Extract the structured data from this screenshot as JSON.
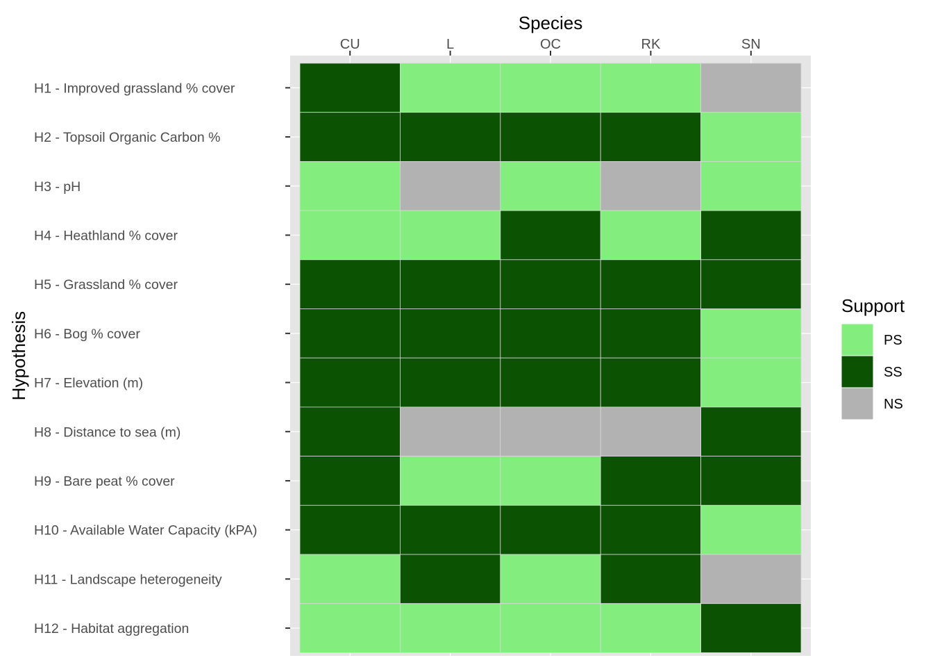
{
  "chart_data": {
    "type": "heatmap",
    "title": "",
    "xlabel": "Species",
    "ylabel": "Hypothesis",
    "x_position": "top",
    "categories": [
      "CU",
      "L",
      "OC",
      "RK",
      "SN"
    ],
    "rows": [
      "H1 - Improved grassland % cover",
      "H2 - Topsoil Organic Carbon %",
      "H3 - pH",
      "H4 - Heathland % cover",
      "H5 - Grassland % cover",
      "H6 - Bog % cover",
      "H7 - Elevation (m)",
      "H8 - Distance to sea (m)",
      "H9 - Bare peat % cover",
      "H10 - Available Water Capacity (kPA)",
      "H11 - Landscape heterogeneity",
      "H12 - Habitat aggregation"
    ],
    "values": [
      [
        "SS",
        "PS",
        "PS",
        "PS",
        "NS"
      ],
      [
        "SS",
        "SS",
        "SS",
        "SS",
        "PS"
      ],
      [
        "PS",
        "NS",
        "PS",
        "NS",
        "PS"
      ],
      [
        "PS",
        "PS",
        "SS",
        "PS",
        "SS"
      ],
      [
        "SS",
        "SS",
        "SS",
        "SS",
        "SS"
      ],
      [
        "SS",
        "SS",
        "SS",
        "SS",
        "PS"
      ],
      [
        "SS",
        "SS",
        "SS",
        "SS",
        "PS"
      ],
      [
        "SS",
        "NS",
        "NS",
        "NS",
        "SS"
      ],
      [
        "SS",
        "PS",
        "PS",
        "SS",
        "SS"
      ],
      [
        "SS",
        "SS",
        "SS",
        "SS",
        "PS"
      ],
      [
        "PS",
        "SS",
        "PS",
        "SS",
        "NS"
      ],
      [
        "PS",
        "PS",
        "PS",
        "PS",
        "SS"
      ]
    ],
    "legend": {
      "title": "Support",
      "position": "right",
      "items": [
        {
          "label": "PS",
          "color": "#83ed7e"
        },
        {
          "label": "SS",
          "color": "#0b5202"
        },
        {
          "label": "NS",
          "color": "#b2b2b2"
        }
      ]
    },
    "panel_background": "#e5e5e5",
    "grid": true
  }
}
